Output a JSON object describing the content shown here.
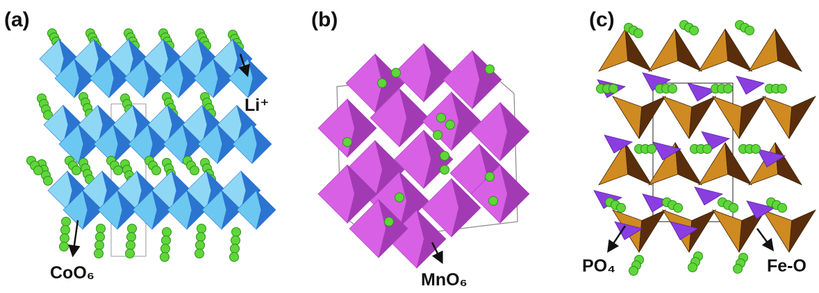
{
  "panels": [
    {
      "label": "(a)",
      "annotations": [
        "Li⁺",
        "CoO₆"
      ]
    },
    {
      "label": "(b)",
      "annotations": [
        "MnO₆"
      ]
    },
    {
      "label": "(c)",
      "annotations": [
        "PO₄",
        "Fe-O"
      ]
    }
  ]
}
